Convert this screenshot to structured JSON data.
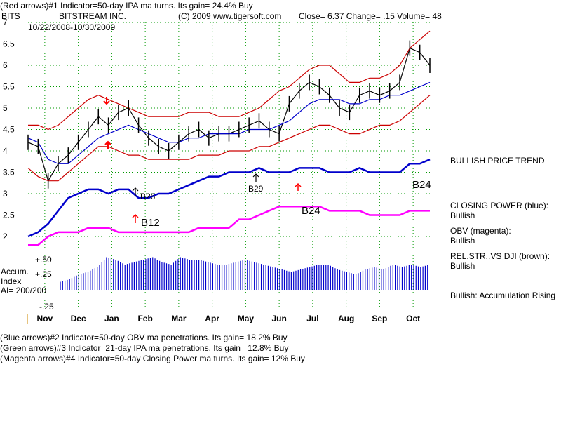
{
  "header": {
    "line1": "(Red arrows)#1 Indicator=50-day IPA ma turns. Its gain= 24.4% Buy",
    "ticker": "BITS",
    "company": "BITSTREAM INC.",
    "copyright": "(C) 2009 www.tigersoft.com",
    "quote": "Close=  6.37  Change= .15 Volume= 48",
    "range": "10/22/2008-10/30/2009"
  },
  "footer": {
    "line2": "(Blue arrows)#2 Indicator=50-day OBV ma penetrations. Its gain= 18.2% Buy",
    "line3": "(Green arrows)#3 Indicator=21-day IPA ma penetrations. Its gain= 12.8% Buy",
    "line4": "(Magenta arrows)#4 Indicator=50-day Closing Power ma turns. Its gain= 12% Buy"
  },
  "accum": {
    "title1": "Accum.",
    "title2": "Index",
    "ai": "AI= 200/200"
  },
  "side": {
    "trend": "BULLISH PRICE TREND",
    "cp_label": "CLOSING POWER (blue):",
    "cp_value": "Bullish",
    "obv_label": "OBV (magenta):",
    "obv_value": "Bullish",
    "rs_label": "REL.STR..VS DJI (brown):",
    "rs_value": "Bullish",
    "accum": "Bullish: Accumulation Rising"
  },
  "annotations": [
    "B26",
    "B12",
    "B29",
    "B24",
    "B24"
  ],
  "colors": {
    "price": "#000000",
    "band": "#cc0000",
    "ma": "#0000cc",
    "closing_power": "#0000cc",
    "obv": "#ff00ff",
    "accum_bars": "#0000cc",
    "arrow_red": "#ff0000",
    "grid": "#009900"
  },
  "chart_data": {
    "type": "line",
    "title": "BITSTREAM INC.",
    "x_tick_labels": [
      "Nov",
      "Dec",
      "Jan",
      "Feb",
      "Mar",
      "Apr",
      "May",
      "Jun",
      "Jul",
      "Aug",
      "Sep",
      "Oct"
    ],
    "y_tick_labels": [
      "7",
      "6.5",
      "6",
      "5.5",
      "5",
      "4.5",
      "4",
      "3.5",
      "3",
      "2.5",
      "2"
    ],
    "ylim": [
      1.5,
      7
    ],
    "grid": true,
    "series": [
      {
        "values": [
          4.2,
          4.1,
          3.3,
          3.7,
          3.9,
          4.2,
          4.5,
          4.8,
          4.6,
          4.9,
          5.0,
          4.6,
          4.3,
          4.1,
          4.0,
          4.2,
          4.4,
          4.5,
          4.3,
          4.4,
          4.4,
          4.5,
          4.6,
          4.7,
          4.5,
          4.4,
          5.1,
          5.4,
          5.6,
          5.5,
          5.3,
          5.0,
          4.9,
          5.3,
          5.4,
          5.3,
          5.4,
          5.6,
          6.4,
          6.3,
          6.0
        ]
      },
      {
        "values": [
          4.3,
          4.2,
          3.8,
          3.7,
          3.7,
          3.9,
          4.1,
          4.3,
          4.4,
          4.5,
          4.6,
          4.5,
          4.4,
          4.3,
          4.2,
          4.2,
          4.3,
          4.3,
          4.4,
          4.4,
          4.4,
          4.4,
          4.5,
          4.5,
          4.5,
          4.6,
          4.7,
          4.9,
          5.1,
          5.2,
          5.2,
          5.2,
          5.1,
          5.1,
          5.2,
          5.2,
          5.3,
          5.3,
          5.4,
          5.5,
          5.6
        ]
      },
      {
        "values": [
          4.6,
          4.6,
          4.5,
          4.6,
          4.8,
          5.0,
          5.2,
          5.3,
          5.2,
          5.1,
          5.0,
          4.9,
          4.8,
          4.8,
          4.8,
          4.8,
          4.9,
          4.9,
          4.9,
          4.8,
          4.8,
          4.8,
          4.9,
          5.0,
          5.2,
          5.4,
          5.5,
          5.7,
          5.9,
          6.0,
          6.0,
          5.8,
          5.6,
          5.6,
          5.7,
          5.7,
          5.8,
          6.0,
          6.4,
          6.6,
          6.8
        ]
      },
      {
        "values": [
          3.6,
          3.4,
          3.3,
          3.3,
          3.5,
          3.7,
          3.9,
          4.1,
          4.1,
          4.0,
          3.9,
          3.9,
          3.8,
          3.8,
          3.8,
          3.8,
          3.8,
          3.9,
          3.9,
          3.9,
          4.0,
          4.0,
          4.0,
          4.1,
          4.1,
          4.2,
          4.3,
          4.4,
          4.5,
          4.6,
          4.6,
          4.5,
          4.4,
          4.4,
          4.5,
          4.6,
          4.6,
          4.7,
          4.9,
          5.1,
          5.3
        ]
      },
      {
        "values": [
          2.0,
          2.1,
          2.3,
          2.6,
          2.9,
          3.0,
          3.1,
          3.1,
          3.0,
          3.1,
          3.1,
          2.9,
          2.9,
          3.0,
          3.0,
          3.1,
          3.2,
          3.3,
          3.4,
          3.4,
          3.5,
          3.5,
          3.5,
          3.6,
          3.5,
          3.5,
          3.5,
          3.6,
          3.6,
          3.6,
          3.5,
          3.5,
          3.5,
          3.6,
          3.5,
          3.5,
          3.5,
          3.5,
          3.7,
          3.7,
          3.8
        ]
      },
      {
        "values": [
          1.8,
          1.8,
          2.0,
          2.1,
          2.1,
          2.1,
          2.2,
          2.2,
          2.2,
          2.1,
          2.1,
          2.1,
          2.1,
          2.1,
          2.1,
          2.1,
          2.1,
          2.2,
          2.2,
          2.2,
          2.2,
          2.4,
          2.4,
          2.5,
          2.6,
          2.7,
          2.7,
          2.7,
          2.7,
          2.7,
          2.6,
          2.6,
          2.6,
          2.6,
          2.5,
          2.5,
          2.5,
          2.5,
          2.6,
          2.6,
          2.6
        ]
      }
    ],
    "accum_index": {
      "y_tick_labels": [
        "+.50",
        "+.25",
        "-.25"
      ],
      "values": [
        0.05,
        0.1,
        0.2,
        0.25,
        0.35,
        0.55,
        0.5,
        0.4,
        0.45,
        0.5,
        0.55,
        0.45,
        0.4,
        0.55,
        0.5,
        0.5,
        0.45,
        0.4,
        0.4,
        0.45,
        0.5,
        0.45,
        0.4,
        0.35,
        0.3,
        0.25,
        0.3,
        0.35,
        0.4,
        0.4,
        0.3,
        0.25,
        0.2,
        0.3,
        0.35,
        0.3,
        0.4,
        0.35,
        0.4,
        0.35,
        0.4
      ]
    }
  }
}
